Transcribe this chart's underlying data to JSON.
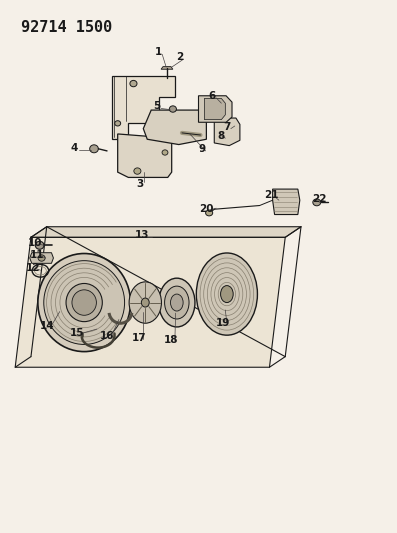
{
  "title": "92714 1500",
  "bg_color": "#f5f0e8",
  "line_color": "#1a1a1a",
  "title_fontsize": 11,
  "label_fontsize": 7.5,
  "fig_width": 3.97,
  "fig_height": 5.33,
  "dpi": 100
}
